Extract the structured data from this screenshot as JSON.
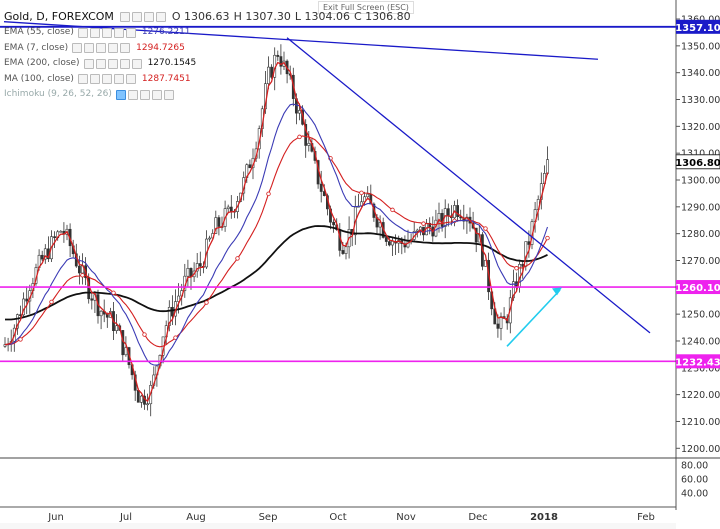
{
  "header": {
    "symbol": "Gold, D, FOREXCOM",
    "open": "O 1306.63",
    "high": "H 1307.30",
    "low": "L 1304.06",
    "close": "C 1306.80",
    "exit_label": "Exit Full Screen (ESC)"
  },
  "indicators": [
    {
      "name": "EMA (55, close)",
      "value": "1276.2211",
      "color": "#3b3bb5"
    },
    {
      "name": "EMA (7, close)",
      "value": "1294.7265",
      "color": "#d42020"
    },
    {
      "name": "EMA (200, close)",
      "value": "1270.1545",
      "color": "#111111"
    },
    {
      "name": "MA (100, close)",
      "value": "1287.7451",
      "color": "#d42020"
    },
    {
      "name": "Ichimoku (9, 26, 52, 26)",
      "value": "",
      "color": "#999999"
    }
  ],
  "price_labels": [
    {
      "text": "1357.10",
      "bg": "#1a1ac8"
    },
    {
      "text": "1306.80",
      "bg": "#ffffff"
    },
    {
      "text": "1260.10",
      "bg": "#ee22ee"
    },
    {
      "text": "1232.43",
      "bg": "#ee22ee"
    }
  ],
  "axis": {
    "price_ticks": [
      "1360.00",
      "1350.00",
      "1340.00",
      "1330.00",
      "1320.00",
      "1310.00",
      "1300.00",
      "1290.00",
      "1280.00",
      "1270.00",
      "1260.00",
      "1250.00",
      "1240.00",
      "1230.00",
      "1220.00",
      "1210.00",
      "1200.00"
    ],
    "lower_ticks": [
      "80.00",
      "60.00",
      "40.00"
    ],
    "months": [
      "Jun",
      "Jul",
      "Aug",
      "Sep",
      "Oct",
      "Nov",
      "Dec",
      "2018",
      "Feb"
    ]
  },
  "colors": {
    "trendline": "#1a1ac8",
    "support": "#ee22ee",
    "arrow": "#22ccee",
    "bull": "#ffffff",
    "bear": "#333333"
  }
}
